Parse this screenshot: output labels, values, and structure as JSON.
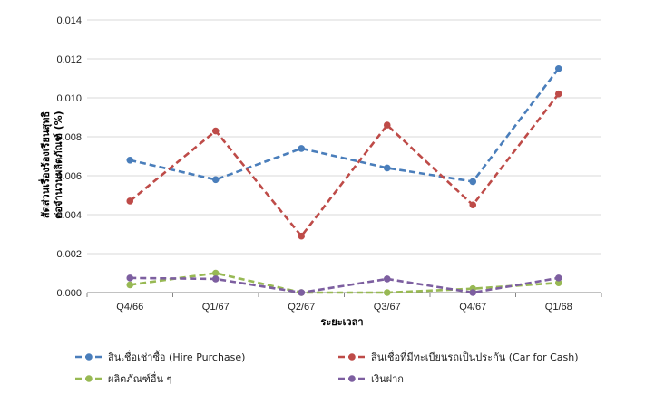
{
  "chart_data": {
    "type": "line",
    "categories": [
      "Q4/66",
      "Q1/67",
      "Q2/67",
      "Q3/67",
      "Q4/67",
      "Q1/68"
    ],
    "ylim": [
      0,
      0.014
    ],
    "yticks": [
      "0.000",
      "0.002",
      "0.004",
      "0.006",
      "0.008",
      "0.010",
      "0.012",
      "0.014"
    ],
    "xlabel": "ระยะเวลา",
    "ylabel": [
      "สัดส่วนเรื่องร้องเรียนสุทธิ",
      "ต่อจำนวนผลิตภัณฑ์ (%)"
    ],
    "grid": true,
    "legend_position": "bottom",
    "series": [
      {
        "name": "สินเชื่อเช่าซื้อ (Hire Purchase)",
        "color": "#4a7ebb",
        "values": [
          0.0068,
          0.0058,
          0.0074,
          0.0064,
          0.0057,
          0.0115
        ]
      },
      {
        "name": "สินเชื่อที่มีทะเบียนรถเป็นประกัน (Car for Cash)",
        "color": "#be4b48",
        "values": [
          0.0047,
          0.0083,
          0.0029,
          0.0086,
          0.0045,
          0.0102
        ]
      },
      {
        "name": "ผลิตภัณฑ์อื่น ๆ",
        "color": "#98b954",
        "values": [
          0.0004,
          0.001,
          0.0,
          0.0,
          0.0002,
          0.0005
        ]
      },
      {
        "name": "เงินฝาก",
        "color": "#7d5fa0",
        "values": [
          0.00075,
          0.0007,
          0.0,
          0.0007,
          0.0,
          0.00075
        ]
      }
    ]
  }
}
